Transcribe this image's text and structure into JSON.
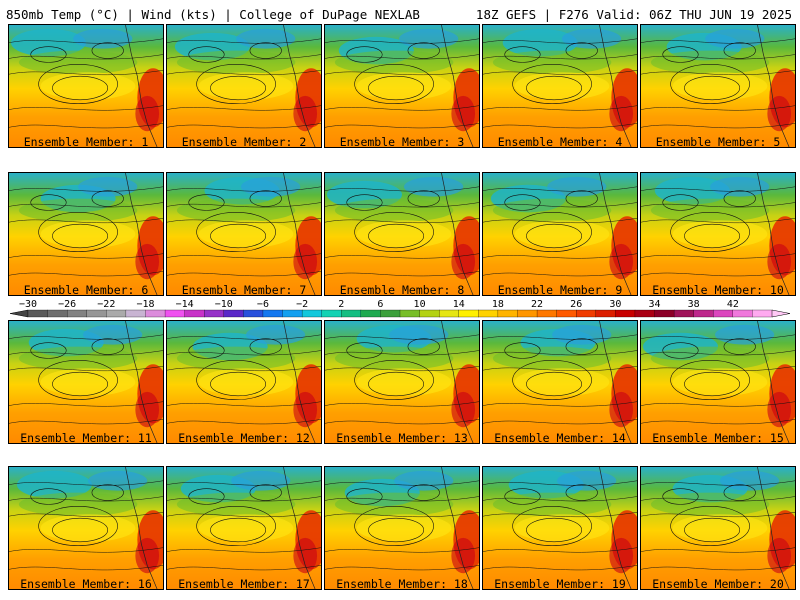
{
  "header": {
    "left": "850mb Temp (°C) | Wind (kts) | College of DuPage NEXLAB",
    "right": "18Z GEFS | F276 Valid: 06Z THU JUN 19 2025"
  },
  "colorbar": {
    "ticks": [
      "-30",
      "-26",
      "-22",
      "-18",
      "-14",
      "-10",
      "-6",
      "-2",
      "2",
      "6",
      "10",
      "14",
      "18",
      "22",
      "26",
      "30",
      "34",
      "38",
      "42"
    ],
    "colors": [
      "#5a5a5a",
      "#6e6e6e",
      "#828282",
      "#969696",
      "#aaaaaa",
      "#c8b4d2",
      "#dc8cdc",
      "#f050f0",
      "#c832c8",
      "#9632c8",
      "#5a28c8",
      "#2850dc",
      "#1478f0",
      "#14a0f0",
      "#14c8dc",
      "#14d2b4",
      "#14be82",
      "#1eaa50",
      "#3ca03c",
      "#78be28",
      "#b4d214",
      "#e6e614",
      "#fff000",
      "#ffd200",
      "#ffb400",
      "#ff9600",
      "#ff7800",
      "#ff5a00",
      "#f03c00",
      "#dc1e00",
      "#c80000",
      "#aa0014",
      "#8c0028",
      "#a0145a",
      "#be288c",
      "#dc46be",
      "#f078dc",
      "#ffaaf0"
    ]
  },
  "panels": [
    {
      "label": "Ensemble Member: 1"
    },
    {
      "label": "Ensemble Member: 2"
    },
    {
      "label": "Ensemble Member: 3"
    },
    {
      "label": "Ensemble Member: 4"
    },
    {
      "label": "Ensemble Member: 5"
    },
    {
      "label": "Ensemble Member: 6"
    },
    {
      "label": "Ensemble Member: 7"
    },
    {
      "label": "Ensemble Member: 8"
    },
    {
      "label": "Ensemble Member: 9"
    },
    {
      "label": "Ensemble Member: 10"
    },
    {
      "label": "Ensemble Member: 11"
    },
    {
      "label": "Ensemble Member: 12"
    },
    {
      "label": "Ensemble Member: 13"
    },
    {
      "label": "Ensemble Member: 14"
    },
    {
      "label": "Ensemble Member: 15"
    },
    {
      "label": "Ensemble Member: 16"
    },
    {
      "label": "Ensemble Member: 17"
    },
    {
      "label": "Ensemble Member: 18"
    },
    {
      "label": "Ensemble Member: 19"
    },
    {
      "label": "Ensemble Member: 20"
    }
  ]
}
